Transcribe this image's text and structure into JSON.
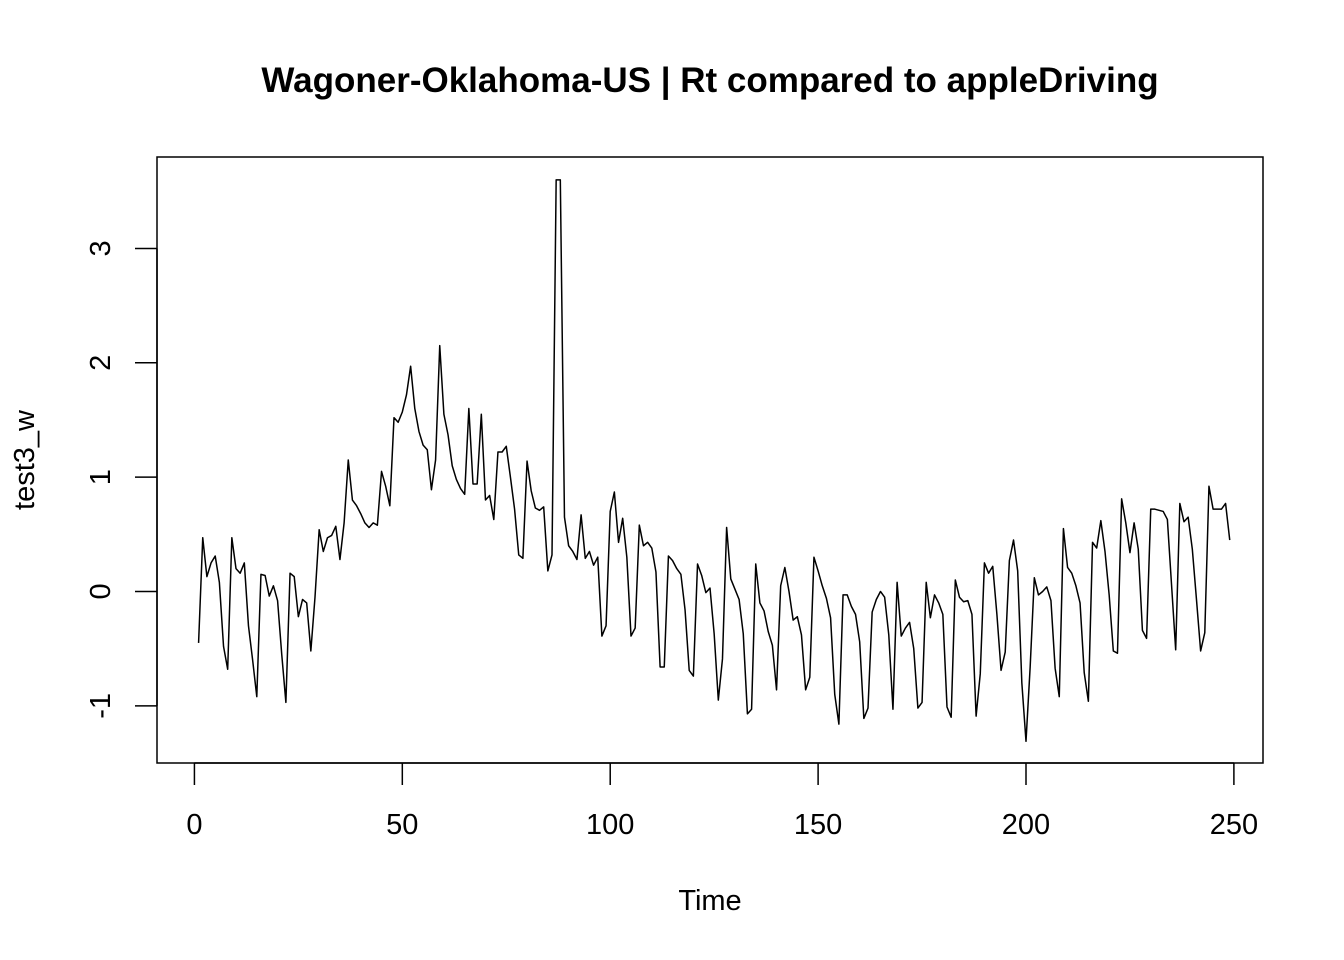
{
  "chart_data": {
    "type": "line",
    "title": "Wagoner-Oklahoma-US | Rt compared to appleDriving",
    "xlabel": "Time",
    "ylabel": "test3_w",
    "xlim": [
      -9,
      257
    ],
    "ylim": [
      -1.5,
      3.8
    ],
    "x_ticks": [
      0,
      50,
      100,
      150,
      200,
      250
    ],
    "y_ticks": [
      -1,
      0,
      1,
      2,
      3
    ],
    "grid": false,
    "line_color": "#000000",
    "series": [
      {
        "x_start": 1,
        "values": [
          -0.45,
          0.47,
          0.13,
          0.25,
          0.31,
          0.08,
          -0.48,
          -0.68,
          0.47,
          0.2,
          0.16,
          0.25,
          -0.3,
          -0.6,
          -0.92,
          0.15,
          0.14,
          -0.04,
          0.05,
          -0.08,
          -0.55,
          -0.97,
          0.16,
          0.13,
          -0.22,
          -0.07,
          -0.1,
          -0.52,
          -0.05,
          0.54,
          0.35,
          0.47,
          0.49,
          0.57,
          0.28,
          0.6,
          1.15,
          0.8,
          0.75,
          0.68,
          0.6,
          0.56,
          0.6,
          0.58,
          1.05,
          0.92,
          0.75,
          1.52,
          1.48,
          1.57,
          1.72,
          1.97,
          1.6,
          1.4,
          1.28,
          1.24,
          0.89,
          1.15,
          2.15,
          1.55,
          1.37,
          1.1,
          0.98,
          0.9,
          0.85,
          1.6,
          0.94,
          0.94,
          1.55,
          0.8,
          0.84,
          0.63,
          1.22,
          1.22,
          1.27,
          1.0,
          0.72,
          0.32,
          0.29,
          1.14,
          0.88,
          0.73,
          0.71,
          0.74,
          0.18,
          0.32,
          3.6,
          3.6,
          0.65,
          0.4,
          0.35,
          0.28,
          0.67,
          0.29,
          0.35,
          0.23,
          0.3,
          -0.39,
          -0.3,
          0.7,
          0.87,
          0.43,
          0.64,
          0.3,
          -0.39,
          -0.32,
          0.58,
          0.4,
          0.43,
          0.38,
          0.17,
          -0.66,
          -0.66,
          0.31,
          0.27,
          0.2,
          0.15,
          -0.16,
          -0.69,
          -0.74,
          0.24,
          0.14,
          -0.01,
          0.03,
          -0.37,
          -0.95,
          -0.59,
          0.56,
          0.11,
          0.02,
          -0.07,
          -0.37,
          -1.07,
          -1.03,
          0.24,
          -0.1,
          -0.17,
          -0.35,
          -0.47,
          -0.86,
          0.05,
          0.21,
          0.0,
          -0.25,
          -0.22,
          -0.38,
          -0.86,
          -0.75,
          0.3,
          0.18,
          0.05,
          -0.06,
          -0.23,
          -0.9,
          -1.16,
          -0.03,
          -0.03,
          -0.13,
          -0.2,
          -0.44,
          -1.11,
          -1.02,
          -0.18,
          -0.07,
          0.0,
          -0.05,
          -0.38,
          -1.03,
          0.08,
          -0.39,
          -0.32,
          -0.27,
          -0.5,
          -1.02,
          -0.97,
          0.08,
          -0.23,
          -0.03,
          -0.1,
          -0.2,
          -1.01,
          -1.1,
          0.1,
          -0.05,
          -0.09,
          -0.08,
          -0.2,
          -1.09,
          -0.72,
          0.25,
          0.16,
          0.22,
          -0.2,
          -0.69,
          -0.53,
          0.27,
          0.45,
          0.18,
          -0.8,
          -1.31,
          -0.66,
          0.12,
          -0.03,
          0.0,
          0.04,
          -0.08,
          -0.67,
          -0.92,
          0.55,
          0.21,
          0.16,
          0.05,
          -0.1,
          -0.71,
          -0.96,
          0.43,
          0.38,
          0.62,
          0.35,
          -0.03,
          -0.52,
          -0.54,
          0.81,
          0.6,
          0.34,
          0.6,
          0.37,
          -0.34,
          -0.41,
          0.72,
          0.72,
          0.71,
          0.7,
          0.63,
          0.06,
          -0.51,
          0.77,
          0.61,
          0.65,
          0.37,
          -0.07,
          -0.52,
          -0.36,
          0.92,
          0.72,
          0.72,
          0.72,
          0.77,
          0.45
        ]
      }
    ]
  }
}
